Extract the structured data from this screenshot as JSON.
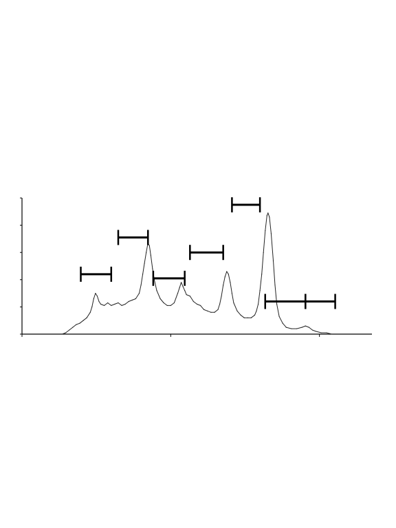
{
  "chart_data": {
    "type": "line",
    "title": "",
    "xlabel": "",
    "ylabel": "",
    "xlim": [
      0,
      100
    ],
    "ylim": [
      0,
      100
    ],
    "grid": false,
    "x_ticks": [
      0,
      42.5,
      85
    ],
    "y_ticks": [
      0,
      20,
      40,
      60,
      80,
      100
    ],
    "series": [
      {
        "points": [
          [
            11.5,
            0
          ],
          [
            12.5,
            1
          ],
          [
            13.5,
            3
          ],
          [
            14.5,
            5
          ],
          [
            15.5,
            7
          ],
          [
            16.5,
            8
          ],
          [
            17.5,
            10
          ],
          [
            18.5,
            12
          ],
          [
            19.5,
            16
          ],
          [
            20.0,
            20
          ],
          [
            20.5,
            26
          ],
          [
            21.0,
            30
          ],
          [
            21.5,
            28
          ],
          [
            22.0,
            24
          ],
          [
            22.5,
            22
          ],
          [
            23.5,
            21
          ],
          [
            24.5,
            23
          ],
          [
            25.5,
            21
          ],
          [
            26.5,
            22
          ],
          [
            27.5,
            23
          ],
          [
            28.5,
            21
          ],
          [
            29.5,
            22
          ],
          [
            30.5,
            24
          ],
          [
            31.5,
            25
          ],
          [
            32.5,
            26
          ],
          [
            33.5,
            30
          ],
          [
            34.0,
            36
          ],
          [
            34.5,
            44
          ],
          [
            35.0,
            52
          ],
          [
            35.5,
            60
          ],
          [
            36.0,
            67
          ],
          [
            36.4,
            65
          ],
          [
            36.8,
            58
          ],
          [
            37.3,
            48
          ],
          [
            37.8,
            40
          ],
          [
            38.5,
            32
          ],
          [
            39.5,
            26
          ],
          [
            40.5,
            23
          ],
          [
            41.5,
            21
          ],
          [
            42.5,
            21
          ],
          [
            43.5,
            23
          ],
          [
            44.5,
            30
          ],
          [
            45.0,
            34
          ],
          [
            45.5,
            38
          ],
          [
            46.0,
            35
          ],
          [
            46.5,
            32
          ],
          [
            47.0,
            29
          ],
          [
            48.0,
            28
          ],
          [
            49.0,
            24
          ],
          [
            50.0,
            22
          ],
          [
            51.0,
            21
          ],
          [
            52.0,
            18
          ],
          [
            53.0,
            17
          ],
          [
            54.0,
            16
          ],
          [
            55.0,
            16
          ],
          [
            56.0,
            18
          ],
          [
            56.5,
            22
          ],
          [
            57.0,
            28
          ],
          [
            57.5,
            36
          ],
          [
            58.0,
            42
          ],
          [
            58.5,
            46
          ],
          [
            59.0,
            44
          ],
          [
            59.5,
            38
          ],
          [
            60.0,
            30
          ],
          [
            60.5,
            23
          ],
          [
            61.5,
            17
          ],
          [
            62.5,
            14
          ],
          [
            63.5,
            12
          ],
          [
            64.5,
            12
          ],
          [
            65.5,
            12
          ],
          [
            66.5,
            14
          ],
          [
            67.0,
            17
          ],
          [
            67.5,
            22
          ],
          [
            68.0,
            32
          ],
          [
            68.5,
            44
          ],
          [
            69.0,
            60
          ],
          [
            69.5,
            76
          ],
          [
            70.0,
            87
          ],
          [
            70.3,
            89
          ],
          [
            70.7,
            86
          ],
          [
            71.2,
            74
          ],
          [
            71.8,
            54
          ],
          [
            72.3,
            36
          ],
          [
            72.8,
            22
          ],
          [
            73.5,
            13
          ],
          [
            74.5,
            8
          ],
          [
            75.5,
            5
          ],
          [
            77.0,
            4
          ],
          [
            78.5,
            4
          ],
          [
            80.0,
            5
          ],
          [
            81.0,
            6
          ],
          [
            82.0,
            5
          ],
          [
            83.0,
            3
          ],
          [
            84.0,
            2
          ],
          [
            85.5,
            1
          ],
          [
            87.0,
            1
          ],
          [
            88.5,
            0
          ]
        ]
      }
    ],
    "gate_markers": [
      {
        "x_start": 16.8,
        "x_end": 25.5,
        "y": 44
      },
      {
        "x_start": 27.5,
        "x_end": 36.0,
        "y": 71
      },
      {
        "x_start": 37.5,
        "x_end": 46.5,
        "y": 41
      },
      {
        "x_start": 48.0,
        "x_end": 57.5,
        "y": 60
      },
      {
        "x_start": 60.0,
        "x_end": 68.0,
        "y": 95
      },
      {
        "x_start": 69.5,
        "x_end": 81.0,
        "y": 24
      },
      {
        "x_start": 81.0,
        "x_end": 89.5,
        "y": 24
      }
    ]
  }
}
